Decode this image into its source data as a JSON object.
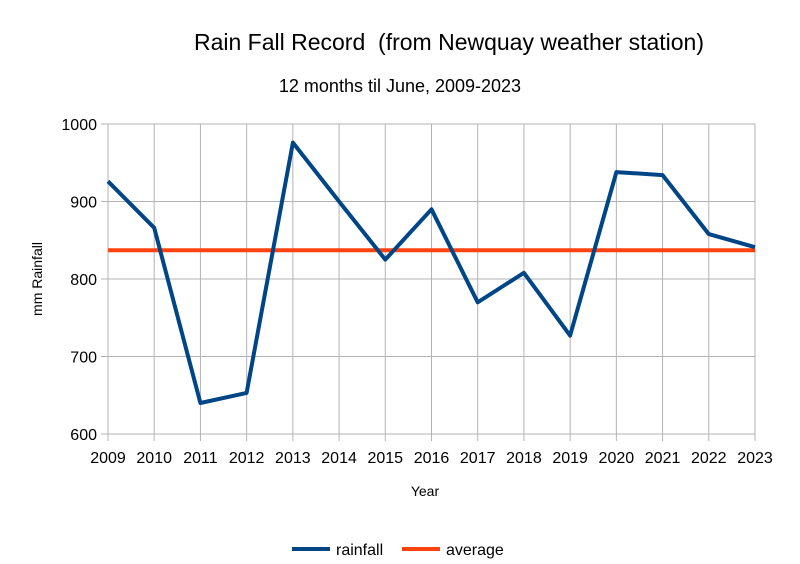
{
  "chart_data": {
    "type": "line",
    "title": "Rain Fall Record  (from Newquay weather station)",
    "subtitle": "12 months til June, 2009-2023",
    "xlabel": "Year",
    "ylabel": "mm Rainfall",
    "x": [
      2009,
      2010,
      2011,
      2012,
      2013,
      2014,
      2015,
      2016,
      2017,
      2018,
      2019,
      2020,
      2021,
      2022,
      2023
    ],
    "ylim": [
      600,
      1000
    ],
    "yticks": [
      600,
      700,
      800,
      900,
      1000
    ],
    "grid": true,
    "legend_position": "bottom",
    "series": [
      {
        "name": "rainfall",
        "color": "#004586",
        "values": [
          926,
          866,
          640,
          653,
          976,
          900,
          825,
          890,
          770,
          808,
          727,
          938,
          934,
          858,
          841
        ]
      },
      {
        "name": "average",
        "color": "#ff420e",
        "values": [
          837,
          837,
          837,
          837,
          837,
          837,
          837,
          837,
          837,
          837,
          837,
          837,
          837,
          837,
          837
        ]
      }
    ]
  }
}
